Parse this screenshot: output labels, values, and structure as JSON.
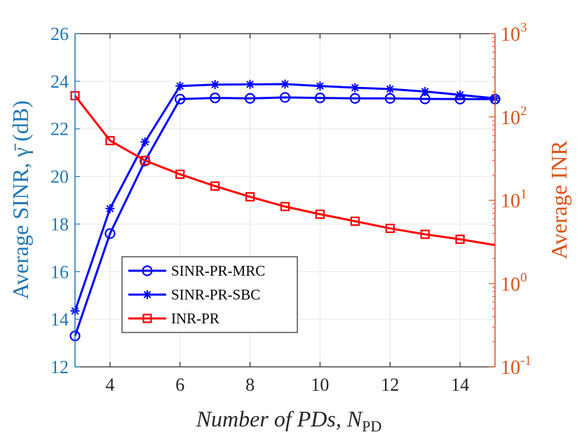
{
  "chart_data": {
    "type": "line",
    "title": "",
    "xlabel": "Number of PDs, N",
    "xlabel_sub": "PD",
    "ylabel_left": "Average SINR, γ̄ (dB)",
    "ylabel_right": "Average INR",
    "xlim": [
      3,
      15
    ],
    "ylim_left": [
      12,
      26
    ],
    "ylim_right_log10": [
      -1,
      3
    ],
    "x_ticks": [
      4,
      6,
      8,
      10,
      12,
      14
    ],
    "y_ticks_left": [
      12,
      14,
      16,
      18,
      20,
      22,
      24,
      26
    ],
    "y_ticks_right": [
      {
        "base": "10",
        "exp": "-1",
        "value": -1
      },
      {
        "base": "10",
        "exp": "0",
        "value": 0
      },
      {
        "base": "10",
        "exp": "1",
        "value": 1
      },
      {
        "base": "10",
        "exp": "2",
        "value": 2
      },
      {
        "base": "10",
        "exp": "3",
        "value": 3
      }
    ],
    "grid": true,
    "legend_position": "lower-left",
    "series": [
      {
        "name": "SINR-PR-MRC",
        "axis": "left",
        "marker": "circle",
        "color": "#0000ff",
        "x": [
          3,
          4,
          5,
          6,
          7,
          8,
          9,
          10,
          11,
          12,
          13,
          14,
          15
        ],
        "values": [
          13.3,
          17.6,
          20.65,
          23.25,
          23.3,
          23.28,
          23.32,
          23.3,
          23.28,
          23.28,
          23.26,
          23.25,
          23.25
        ]
      },
      {
        "name": "SINR-PR-SBC",
        "axis": "left",
        "marker": "asterisk",
        "color": "#0000ff",
        "x": [
          3,
          4,
          5,
          6,
          7,
          8,
          9,
          10,
          11,
          12,
          13,
          14,
          15
        ],
        "values": [
          14.35,
          18.65,
          21.45,
          23.8,
          23.86,
          23.87,
          23.88,
          23.8,
          23.73,
          23.67,
          23.57,
          23.43,
          23.28
        ]
      },
      {
        "name": "INR-PR",
        "axis": "right",
        "marker": "square",
        "color": "#ff0000",
        "x": [
          3,
          4,
          5,
          6,
          7,
          8,
          9,
          10,
          11,
          12,
          13,
          14,
          15
        ],
        "values": [
          180,
          52,
          30,
          20.5,
          14.8,
          11,
          8.4,
          6.8,
          5.6,
          4.6,
          3.9,
          3.4,
          2.9
        ],
        "marker_x": [
          3,
          4,
          5,
          6,
          7,
          8,
          9,
          10,
          11,
          12,
          13,
          14
        ]
      }
    ]
  }
}
